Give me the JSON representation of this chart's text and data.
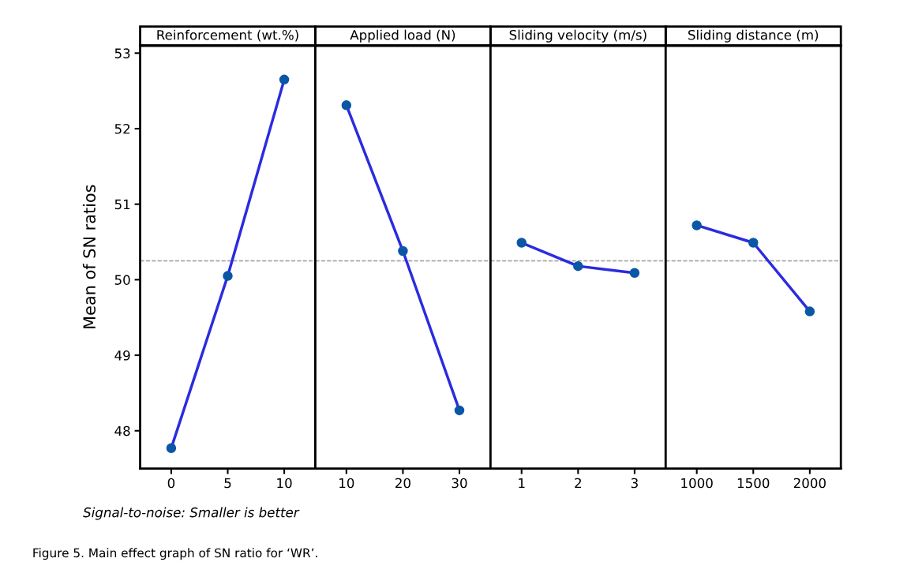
{
  "chart_data": [
    {
      "type": "line",
      "title": "Reinforcement (wt.%)",
      "ylabel": "Mean of SN ratios",
      "categories": [
        "0",
        "5",
        "10"
      ],
      "series": [
        {
          "color": "#2b2be0",
          "values": [
            47.77,
            50.05,
            52.65
          ]
        }
      ],
      "ylim": [
        47.5,
        53.1
      ],
      "yticks": [
        48,
        49,
        50,
        51,
        52,
        53
      ],
      "marker": "circle",
      "line_style": "solid",
      "grid": false,
      "ref_lines": [
        {
          "axis": "y",
          "value": 50.25,
          "color": "#999999",
          "line_style": "dashed"
        }
      ],
      "annotations": [
        "Signal-to-noise: Smaller is better",
        "Figure 5. Main effect graph of SN ratio for ‘WR’."
      ]
    },
    {
      "type": "line",
      "title": "Applied load (N)",
      "categories": [
        "10",
        "20",
        "30"
      ],
      "series": [
        {
          "color": "#2b2be0",
          "values": [
            52.31,
            50.38,
            48.27
          ]
        }
      ],
      "ylim": [
        47.5,
        53.1
      ],
      "tick_labels": "x",
      "marker": "circle",
      "line_style": "solid",
      "grid": false,
      "ref_lines": [
        {
          "axis": "y",
          "value": 50.25,
          "color": "#999999",
          "line_style": "dashed"
        }
      ]
    },
    {
      "type": "line",
      "title": "Sliding velocity (m/s)",
      "categories": [
        "1",
        "2",
        "3"
      ],
      "series": [
        {
          "color": "#2b2be0",
          "values": [
            50.49,
            50.18,
            50.09
          ]
        }
      ],
      "ylim": [
        47.5,
        53.1
      ],
      "tick_labels": "x",
      "marker": "circle",
      "line_style": "solid",
      "grid": false,
      "ref_lines": [
        {
          "axis": "y",
          "value": 50.25,
          "color": "#999999",
          "line_style": "dashed"
        }
      ]
    },
    {
      "type": "line",
      "title": "Sliding distance (m)",
      "categories": [
        "1000",
        "1500",
        "2000"
      ],
      "series": [
        {
          "color": "#2b2be0",
          "values": [
            50.72,
            50.49,
            49.58
          ]
        }
      ],
      "ylim": [
        47.5,
        53.1
      ],
      "tick_labels": "x",
      "marker": "circle",
      "line_style": "solid",
      "grid": false,
      "ref_lines": [
        {
          "axis": "y",
          "value": 50.25,
          "color": "#999999",
          "line_style": "dashed"
        }
      ]
    }
  ]
}
